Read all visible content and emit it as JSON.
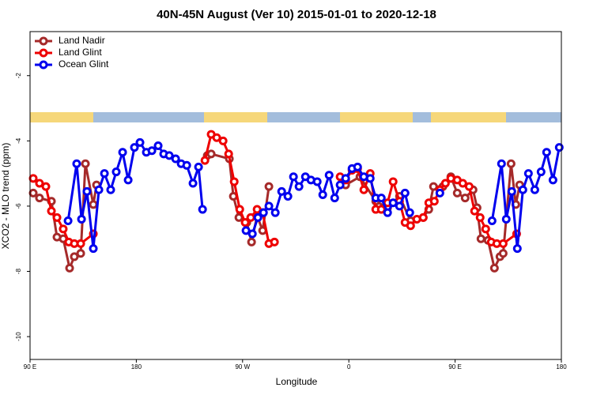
{
  "chart_data": {
    "type": "line",
    "title": "40N-45N August (Ver 10)   2015-01-01 to 2020-12-18",
    "x_label": "Longitude",
    "y_label": "XCO2 - MLO trend (ppm)",
    "xlim": [
      90,
      540
    ],
    "ylim": [
      -10.7,
      -0.65
    ],
    "xticks": [
      {
        "value": 90,
        "label": "90 E"
      },
      180,
      {
        "value": 270,
        "label": "90 W"
      },
      {
        "value": 360,
        "label": "0"
      },
      {
        "value": 450,
        "label": "90 E"
      },
      180
    ],
    "yticks": [
      -2,
      -4,
      -6,
      -8,
      -10
    ],
    "legend": "top-left",
    "series": [
      {
        "name": "Land Nadir",
        "color": "#a52a2a",
        "x": [
          92.7,
          98.0,
          108.1,
          112.8,
          118.1,
          123.5,
          127.5,
          132.9,
          136.9,
          143.6,
          146.3,
          null,
          240.1,
          243.4,
          258.8,
          262.2,
          266.9,
          273.6,
          277.6,
          282.3,
          287.0,
          292.3,
          null,
          357.3,
          369.4,
          382.8,
          392.8,
          402.9,
          412.3,
          423.0,
          427.7,
          431.7,
          439.7,
          446.4,
          451.8,
          458.5,
          465.2,
          468.6,
          471.9,
          477.9,
          483.3,
          488.0,
          490.7,
          497.4,
          501.4,
          504.7
        ],
        "values": [
          -5.6,
          -5.75,
          -5.85,
          -6.95,
          -7.0,
          -7.9,
          -7.55,
          -7.45,
          -4.7,
          -5.95,
          -5.35,
          null,
          -4.45,
          -4.4,
          -4.55,
          -5.7,
          -6.35,
          -6.5,
          -7.1,
          -6.3,
          -6.75,
          -5.4,
          null,
          -5.35,
          -5.1,
          -5.85,
          -6.05,
          -5.7,
          -6.45,
          -6.35,
          -6.1,
          -5.4,
          -5.4,
          -5.1,
          -5.6,
          -5.75,
          -5.5,
          -6.05,
          -7.0,
          -7.05,
          -7.9,
          -7.55,
          -7.45,
          -4.7,
          -5.95,
          -5.35
        ]
      },
      {
        "name": "Land Glint",
        "color": "#ee0000",
        "x": [
          92.7,
          98.0,
          103.4,
          108.1,
          112.8,
          118.1,
          122.8,
          127.5,
          132.9,
          143.6,
          null,
          238.1,
          243.4,
          248.1,
          253.5,
          258.2,
          262.9,
          267.6,
          272.2,
          276.9,
          282.3,
          287.0,
          292.3,
          297.0,
          null,
          352.6,
          357.3,
          362.7,
          367.4,
          372.7,
          378.1,
          382.8,
          387.5,
          392.8,
          397.5,
          402.9,
          407.6,
          412.3,
          417.6,
          423.0,
          427.7,
          432.4,
          437.1,
          441.8,
          446.4,
          451.8,
          456.5,
          461.9,
          466.5,
          471.2,
          475.9,
          480.6,
          485.3,
          490.7,
          502.1
        ],
        "values": [
          -5.15,
          -5.3,
          -5.4,
          -6.15,
          -6.35,
          -6.7,
          -7.1,
          -7.15,
          -7.15,
          -6.85,
          null,
          -4.6,
          -3.8,
          -3.9,
          -4.0,
          -4.4,
          -5.25,
          -6.1,
          -6.5,
          -6.35,
          -6.1,
          -6.2,
          -7.15,
          -7.1,
          null,
          -5.1,
          -5.2,
          -4.9,
          -4.85,
          -5.5,
          -5.0,
          -6.1,
          -6.1,
          -5.9,
          -5.25,
          -5.85,
          -6.5,
          -6.6,
          -6.4,
          -6.35,
          -5.9,
          -5.85,
          -5.5,
          -5.3,
          -5.15,
          -5.2,
          -5.3,
          -5.4,
          -6.15,
          -6.35,
          -6.7,
          -7.1,
          -7.15,
          -7.15,
          -6.85
        ]
      },
      {
        "name": "Ocean Glint",
        "color": "#0000ee",
        "x": [
          122.2,
          129.5,
          133.6,
          138.2,
          143.6,
          148.3,
          153.0,
          158.3,
          163.0,
          168.4,
          173.1,
          178.4,
          183.1,
          188.5,
          193.2,
          198.5,
          203.2,
          207.9,
          213.3,
          218.0,
          222.7,
          228.0,
          232.7,
          236.1,
          null,
          272.9,
          278.3,
          283.0,
          287.7,
          292.3,
          297.7,
          303.1,
          308.4,
          313.1,
          317.8,
          323.2,
          327.9,
          333.2,
          337.9,
          343.3,
          348.0,
          352.6,
          357.3,
          362.7,
          367.4,
          372.7,
          378.1,
          382.8,
          387.5,
          392.8,
          397.5,
          402.9,
          407.6,
          411.6,
          null,
          437.1,
          null,
          481.3,
          489.3,
          493.3,
          498.0,
          502.7,
          507.4,
          512.1,
          517.5,
          522.8,
          527.5,
          532.9,
          538.2
        ],
        "values": [
          -6.45,
          -4.7,
          -6.4,
          -5.55,
          -7.3,
          -5.5,
          -5.0,
          -5.5,
          -4.95,
          -4.35,
          -5.2,
          -4.2,
          -4.05,
          -4.35,
          -4.3,
          -4.15,
          -4.4,
          -4.45,
          -4.55,
          -4.7,
          -4.75,
          -5.3,
          -4.8,
          -6.1,
          null,
          -6.75,
          -6.85,
          -6.35,
          -6.2,
          -6.0,
          -6.2,
          -5.55,
          -5.7,
          -5.1,
          -5.4,
          -5.1,
          -5.2,
          -5.25,
          -5.65,
          -5.05,
          -5.75,
          -5.35,
          -5.15,
          -4.85,
          -4.8,
          -5.1,
          -5.15,
          -5.75,
          -5.75,
          -6.2,
          -5.9,
          -6.0,
          -5.6,
          -6.2,
          null,
          -5.6,
          null,
          -6.45,
          -4.7,
          -6.4,
          -5.55,
          -7.3,
          -5.5,
          -5.0,
          -5.5,
          -4.95,
          -4.35,
          -5.2,
          -4.2
        ]
      }
    ]
  }
}
